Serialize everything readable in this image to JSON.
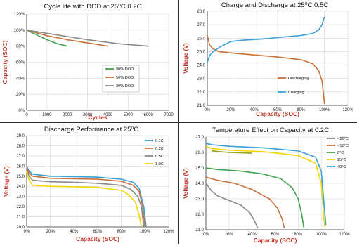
{
  "colors": {
    "divider": "#2f2f2f",
    "label": "#c0392b",
    "grid": "#d6d6d6",
    "green": "#3fa34d",
    "orange": "#c9703a",
    "gray": "#8a8a8a",
    "blue": "#1f77b4",
    "yellow": "#f2d500",
    "teal": "#3a9fd6",
    "olive": "#9aa21e"
  },
  "chart_data": [
    {
      "type": "line",
      "title": "Cycle life with DOD at 25⁰C 0.2C",
      "xlabel": "Cycles",
      "ylabel": "Capacity (SOC)",
      "xlim": [
        0,
        7000
      ],
      "ylim": [
        0,
        120
      ],
      "x_ticks": [
        "0",
        "1000",
        "2000",
        "3000",
        "4000",
        "5000",
        "6000",
        "7000"
      ],
      "y_ticks": [
        "0%",
        "20%",
        "40%",
        "60%",
        "80%",
        "100%",
        "120%"
      ],
      "legend_position": "right-center",
      "grid": true,
      "series": [
        {
          "name": "90% DOD",
          "color": "#3fa34d",
          "points": [
            [
              0,
              100
            ],
            [
              500,
              94
            ],
            [
              1000,
              88
            ],
            [
              1500,
              83
            ],
            [
              2000,
              80
            ]
          ]
        },
        {
          "name": "50% DOD",
          "color": "#c9703a",
          "points": [
            [
              0,
              100
            ],
            [
              1000,
              93
            ],
            [
              2000,
              88
            ],
            [
              3000,
              84
            ],
            [
              4000,
              80
            ]
          ]
        },
        {
          "name": "30% DOD",
          "color": "#8a8a8a",
          "points": [
            [
              0,
              100
            ],
            [
              1500,
              94
            ],
            [
              3000,
              88
            ],
            [
              4500,
              83
            ],
            [
              6000,
              80
            ]
          ]
        }
      ]
    },
    {
      "type": "line",
      "title": "Charge and Discharge at 25⁰C 0.5C",
      "xlabel": "Capacity (SOC)",
      "ylabel": "Voltage (V)",
      "xlim": [
        0,
        120
      ],
      "ylim": [
        21,
        28
      ],
      "x_ticks": [
        "0%",
        "20%",
        "40%",
        "60%",
        "80%",
        "100%",
        "120%"
      ],
      "y_ticks": [
        "21.0",
        "22.0",
        "23.0",
        "24.0",
        "25.0",
        "26.0",
        "27.0",
        "28.0"
      ],
      "legend_position": "bottom-right",
      "grid": true,
      "series": [
        {
          "name": "Discharging",
          "color": "#c9703a",
          "points": [
            [
              0,
              26.2
            ],
            [
              2,
              25.5
            ],
            [
              5,
              25.2
            ],
            [
              10,
              25.0
            ],
            [
              20,
              24.9
            ],
            [
              40,
              24.75
            ],
            [
              60,
              24.6
            ],
            [
              80,
              24.4
            ],
            [
              90,
              24.1
            ],
            [
              95,
              23.6
            ],
            [
              98,
              22.8
            ],
            [
              100,
              21.1
            ]
          ]
        },
        {
          "name": "Charging",
          "color": "#3a9fd6",
          "points": [
            [
              0,
              24.2
            ],
            [
              2,
              24.7
            ],
            [
              5,
              25.0
            ],
            [
              10,
              25.3
            ],
            [
              20,
              25.75
            ],
            [
              30,
              25.85
            ],
            [
              50,
              25.95
            ],
            [
              60,
              26.05
            ],
            [
              80,
              26.2
            ],
            [
              90,
              26.35
            ],
            [
              95,
              26.6
            ],
            [
              98,
              27.0
            ],
            [
              100,
              27.6
            ]
          ]
        }
      ]
    },
    {
      "type": "line",
      "title": "Discharge Performance at 25⁰C",
      "xlabel": "Capacity (SOC)",
      "ylabel": "Voltage (V)",
      "xlim": [
        0,
        120
      ],
      "ylim": [
        20,
        29
      ],
      "x_ticks": [
        "0%",
        "20%",
        "40%",
        "60%",
        "80%",
        "100%",
        "120%"
      ],
      "y_ticks": [
        "20.0",
        "21.0",
        "22.0",
        "23.0",
        "24.0",
        "25.0",
        "26.0",
        "27.0",
        "28.0",
        "29.0"
      ],
      "legend_position": "top-right",
      "grid": true,
      "series": [
        {
          "name": "0.1C",
          "color": "#3a9fd6",
          "points": [
            [
              0,
              26.0
            ],
            [
              2,
              25.5
            ],
            [
              5,
              25.2
            ],
            [
              20,
              25.0
            ],
            [
              40,
              24.95
            ],
            [
              60,
              24.9
            ],
            [
              80,
              24.7
            ],
            [
              90,
              24.4
            ],
            [
              95,
              23.8
            ],
            [
              99,
              22.0
            ],
            [
              101,
              20.0
            ]
          ]
        },
        {
          "name": "0.2C",
          "color": "#c9703a",
          "points": [
            [
              0,
              25.9
            ],
            [
              2,
              25.3
            ],
            [
              5,
              25.0
            ],
            [
              20,
              24.8
            ],
            [
              40,
              24.75
            ],
            [
              60,
              24.7
            ],
            [
              80,
              24.5
            ],
            [
              90,
              24.1
            ],
            [
              95,
              23.5
            ],
            [
              98,
              22.0
            ],
            [
              100,
              20.0
            ]
          ]
        },
        {
          "name": "0.5C",
          "color": "#8a8a8a",
          "points": [
            [
              0,
              25.7
            ],
            [
              2,
              25.0
            ],
            [
              5,
              24.6
            ],
            [
              20,
              24.45
            ],
            [
              40,
              24.4
            ],
            [
              60,
              24.3
            ],
            [
              80,
              24.1
            ],
            [
              88,
              23.7
            ],
            [
              94,
              23.0
            ],
            [
              97,
              22.0
            ],
            [
              99,
              20.0
            ]
          ]
        },
        {
          "name": "1.0C",
          "color": "#f2d500",
          "points": [
            [
              0,
              25.5
            ],
            [
              2,
              24.6
            ],
            [
              5,
              24.1
            ],
            [
              20,
              24.0
            ],
            [
              40,
              23.95
            ],
            [
              60,
              23.9
            ],
            [
              80,
              23.6
            ],
            [
              86,
              23.2
            ],
            [
              92,
              22.4
            ],
            [
              95,
              21.2
            ],
            [
              97,
              20.0
            ]
          ]
        }
      ]
    },
    {
      "type": "line",
      "title": "Temperature Effect on Capacity at 0.2C",
      "xlabel": "Capacity (SOC)",
      "ylabel": "Voltage (V)",
      "xlim": [
        0,
        120
      ],
      "ylim": [
        21,
        27
      ],
      "x_ticks": [
        "0%",
        "20%",
        "40%",
        "60%",
        "80%",
        "100%",
        "120%"
      ],
      "y_ticks": [
        "21.0",
        "22.0",
        "23.0",
        "24.0",
        "25.0",
        "26.0",
        "27.0"
      ],
      "legend_position": "top-right",
      "grid": true,
      "series": [
        {
          "name": "- 20⁰C",
          "color": "#8a8a8a",
          "points": [
            [
              0,
              24.0
            ],
            [
              5,
              23.5
            ],
            [
              10,
              23.2
            ],
            [
              20,
              22.9
            ],
            [
              30,
              22.6
            ],
            [
              38,
              22.1
            ],
            [
              42,
              21.6
            ],
            [
              45,
              21.1
            ]
          ]
        },
        {
          "name": "- 10⁰C",
          "color": "#c9703a",
          "points": [
            [
              0,
              24.4
            ],
            [
              10,
              24.2
            ],
            [
              25,
              24.0
            ],
            [
              40,
              23.6
            ],
            [
              55,
              23.0
            ],
            [
              62,
              22.4
            ],
            [
              66,
              21.7
            ],
            [
              68,
              21.1
            ]
          ]
        },
        {
          "name": "0⁰C",
          "color": "#3fa34d",
          "points": [
            [
              0,
              25.0
            ],
            [
              10,
              24.9
            ],
            [
              30,
              24.8
            ],
            [
              50,
              24.6
            ],
            [
              65,
              24.3
            ],
            [
              75,
              23.7
            ],
            [
              80,
              23.0
            ],
            [
              83,
              22.0
            ],
            [
              85,
              21.1
            ]
          ]
        },
        {
          "name": "25⁰C",
          "color": "#f2d500",
          "points": [
            [
              0,
              26.4
            ],
            [
              5,
              26.25
            ],
            [
              20,
              26.15
            ],
            [
              50,
              26.05
            ],
            [
              80,
              25.8
            ],
            [
              95,
              25.3
            ],
            [
              100,
              24.0
            ],
            [
              102,
              22.0
            ],
            [
              103,
              21.2
            ]
          ]
        },
        {
          "name": "40⁰C",
          "color": "#3a9fd6",
          "points": [
            [
              0,
              26.6
            ],
            [
              5,
              26.5
            ],
            [
              20,
              26.4
            ],
            [
              50,
              26.3
            ],
            [
              80,
              26.1
            ],
            [
              95,
              25.7
            ],
            [
              100,
              24.8
            ],
            [
              102,
              23.0
            ],
            [
              104,
              21.3
            ]
          ]
        },
        {
          "color": "#9aa21e",
          "points": [
            [
              5,
              26.1
            ],
            [
              20,
              26.0
            ],
            [
              40,
              25.95
            ]
          ]
        }
      ]
    }
  ]
}
